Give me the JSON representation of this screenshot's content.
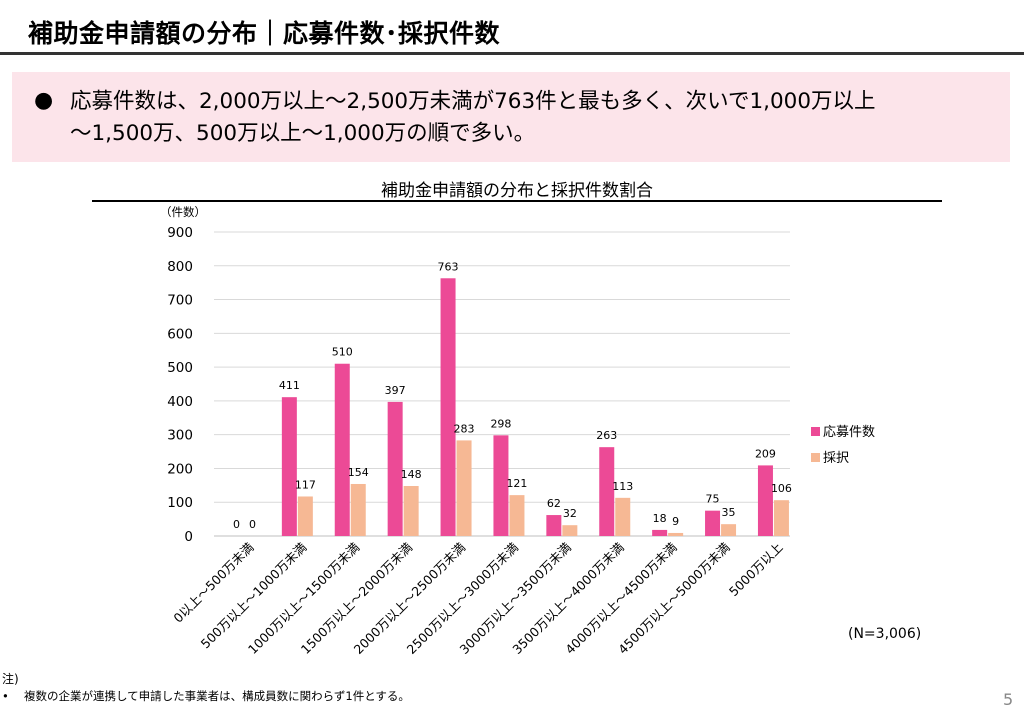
{
  "slide": {
    "title": "補助金申請額の分布｜応募件数･採択件数",
    "bullet": "●",
    "summary_line1": "応募件数は、2,000万以上～2,500万未満が763件と最も多く、次いで1,000万以上",
    "summary_line2": "～1,500万、500万以上～1,000万の順で多い。",
    "sample_note": "(N=3,006)",
    "footnote_head": "注)",
    "footnote_bullet": "•",
    "footnote_text": "複数の企業が連携して申請した事業者は、構成員数に関わらず1件とする。",
    "page_number": "5",
    "colors": {
      "title_rule": "#333333",
      "summary_bg": "#fce4ea",
      "applications": "#ec4a96",
      "adopted": "#f6b894",
      "gridline": "#d9d9d9"
    }
  },
  "chart_data": {
    "type": "bar",
    "title": "補助金申請額の分布と採択件数割合",
    "ylabel": "（件数）",
    "xlabel": "",
    "ylim": [
      0,
      900
    ],
    "yticks": [
      0,
      100,
      200,
      300,
      400,
      500,
      600,
      700,
      800,
      900
    ],
    "grid": true,
    "legend_position": "right",
    "categories": [
      "0以上～500万未満",
      "500万以上～1000万未満",
      "1000万以上～1500万未満",
      "1500万以上～2000万未満",
      "2000万以上～2500万未満",
      "2500万以上～3000万未満",
      "3000万以上～3500万未満",
      "3500万以上～4000万未満",
      "4000万以上～4500万未満",
      "4500万以上～5000万未満",
      "5000万以上"
    ],
    "series": [
      {
        "name": "応募件数",
        "color": "#ec4a96",
        "values": [
          0,
          411,
          510,
          397,
          763,
          298,
          62,
          263,
          18,
          75,
          209
        ]
      },
      {
        "name": "採択",
        "color": "#f6b894",
        "values": [
          0,
          117,
          154,
          148,
          283,
          121,
          32,
          113,
          9,
          35,
          106
        ]
      }
    ]
  }
}
